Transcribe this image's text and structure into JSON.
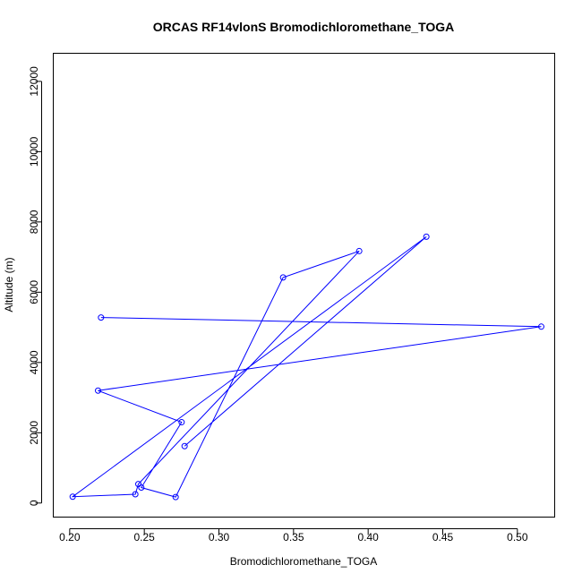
{
  "chart_data": {
    "type": "line",
    "title": "ORCAS RF14vlonS Bromodichloromethane_TOGA",
    "xlabel": "Bromodichloromethane_TOGA",
    "ylabel": "Altitude (m)",
    "xlim": [
      0.189,
      0.525
    ],
    "ylim": [
      -400,
      12800
    ],
    "xticks": [
      0.2,
      0.25,
      0.3,
      0.35,
      0.4,
      0.45,
      0.5
    ],
    "xtick_labels": [
      "0.20",
      "0.25",
      "0.30",
      "0.35",
      "0.40",
      "0.45",
      "0.50"
    ],
    "yticks": [
      0,
      2000,
      4000,
      6000,
      8000,
      10000,
      12000
    ],
    "ytick_labels": [
      "0",
      "2000",
      "4000",
      "6000",
      "8000",
      "10000",
      "12000"
    ],
    "grid": false,
    "color": "#0000ff",
    "series": [
      {
        "x": [
          0.277,
          0.439,
          0.202,
          0.244,
          0.246,
          0.394,
          0.343,
          0.271,
          0.248,
          0.275,
          0.219,
          0.516,
          0.221
        ],
        "y": [
          1620,
          7580,
          180,
          250,
          540,
          7170,
          6420,
          170,
          440,
          2300,
          3200,
          5020,
          5280
        ]
      }
    ]
  }
}
